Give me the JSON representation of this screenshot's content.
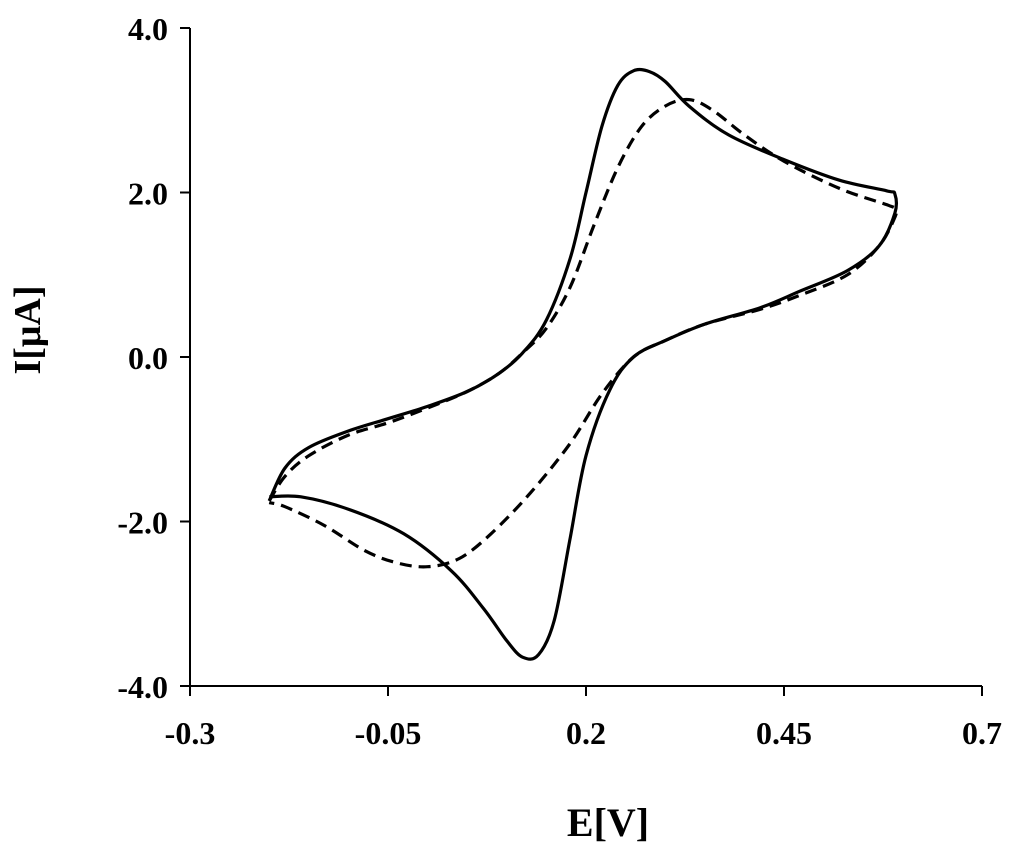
{
  "chart_data": {
    "type": "line",
    "title": "",
    "xlabel": "E[V]",
    "ylabel": "I[μA]",
    "xlim": [
      -0.3,
      0.7
    ],
    "ylim": [
      -4.0,
      4.0
    ],
    "x_ticks": [
      -0.3,
      -0.05,
      0.2,
      0.45,
      0.7
    ],
    "x_tick_labels": [
      "-0.3",
      "-0.05",
      "0.2",
      "0.45",
      "0.7"
    ],
    "y_ticks": [
      4.0,
      2.0,
      0.0,
      -2.0,
      -4.0
    ],
    "y_tick_labels": [
      "4.0",
      "2.0",
      "0.0",
      "-2.0",
      "-4.0"
    ],
    "grid": false,
    "legend": "none",
    "series": [
      {
        "style": "solid",
        "color": "#000000",
        "points": [
          [
            -0.2,
            -1.75
          ],
          [
            -0.18,
            -1.35
          ],
          [
            -0.15,
            -1.1
          ],
          [
            -0.1,
            -0.9
          ],
          [
            -0.05,
            -0.75
          ],
          [
            0.0,
            -0.6
          ],
          [
            0.05,
            -0.42
          ],
          [
            0.09,
            -0.2
          ],
          [
            0.12,
            0.05
          ],
          [
            0.15,
            0.45
          ],
          [
            0.18,
            1.2
          ],
          [
            0.2,
            2.0
          ],
          [
            0.22,
            2.8
          ],
          [
            0.24,
            3.3
          ],
          [
            0.26,
            3.48
          ],
          [
            0.28,
            3.47
          ],
          [
            0.3,
            3.35
          ],
          [
            0.33,
            3.05
          ],
          [
            0.38,
            2.7
          ],
          [
            0.45,
            2.4
          ],
          [
            0.52,
            2.15
          ],
          [
            0.58,
            2.02
          ],
          [
            0.59,
            1.98
          ],
          [
            0.59,
            1.75
          ],
          [
            0.57,
            1.35
          ],
          [
            0.53,
            1.05
          ],
          [
            0.47,
            0.8
          ],
          [
            0.42,
            0.6
          ],
          [
            0.35,
            0.4
          ],
          [
            0.3,
            0.2
          ],
          [
            0.26,
            0.0
          ],
          [
            0.23,
            -0.4
          ],
          [
            0.2,
            -1.2
          ],
          [
            0.18,
            -2.2
          ],
          [
            0.16,
            -3.2
          ],
          [
            0.14,
            -3.62
          ],
          [
            0.12,
            -3.65
          ],
          [
            0.1,
            -3.45
          ],
          [
            0.07,
            -3.05
          ],
          [
            0.03,
            -2.6
          ],
          [
            -0.03,
            -2.15
          ],
          [
            -0.1,
            -1.85
          ],
          [
            -0.16,
            -1.7
          ],
          [
            -0.2,
            -1.7
          ]
        ]
      },
      {
        "style": "dashed",
        "color": "#000000",
        "points": [
          [
            -0.2,
            -1.75
          ],
          [
            -0.18,
            -1.45
          ],
          [
            -0.15,
            -1.2
          ],
          [
            -0.1,
            -0.95
          ],
          [
            -0.05,
            -0.8
          ],
          [
            0.0,
            -0.62
          ],
          [
            0.05,
            -0.42
          ],
          [
            0.09,
            -0.2
          ],
          [
            0.12,
            0.05
          ],
          [
            0.15,
            0.35
          ],
          [
            0.18,
            0.85
          ],
          [
            0.21,
            1.6
          ],
          [
            0.24,
            2.3
          ],
          [
            0.27,
            2.8
          ],
          [
            0.3,
            3.05
          ],
          [
            0.33,
            3.13
          ],
          [
            0.36,
            3.0
          ],
          [
            0.4,
            2.7
          ],
          [
            0.45,
            2.38
          ],
          [
            0.52,
            2.05
          ],
          [
            0.58,
            1.85
          ],
          [
            0.59,
            1.8
          ],
          [
            0.59,
            1.7
          ],
          [
            0.57,
            1.35
          ],
          [
            0.53,
            1.0
          ],
          [
            0.47,
            0.75
          ],
          [
            0.42,
            0.58
          ],
          [
            0.35,
            0.4
          ],
          [
            0.3,
            0.2
          ],
          [
            0.26,
            0.0
          ],
          [
            0.22,
            -0.45
          ],
          [
            0.18,
            -1.05
          ],
          [
            0.13,
            -1.65
          ],
          [
            0.08,
            -2.15
          ],
          [
            0.04,
            -2.45
          ],
          [
            0.0,
            -2.55
          ],
          [
            -0.04,
            -2.5
          ],
          [
            -0.08,
            -2.35
          ],
          [
            -0.13,
            -2.05
          ],
          [
            -0.18,
            -1.82
          ],
          [
            -0.2,
            -1.77
          ]
        ]
      }
    ]
  }
}
